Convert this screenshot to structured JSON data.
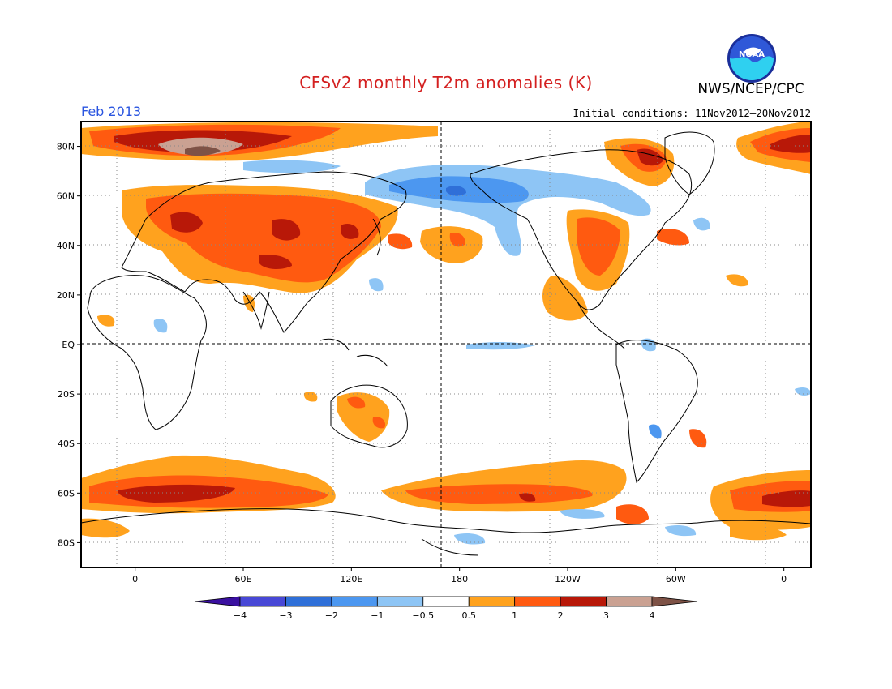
{
  "title": "CFSv2 monthly T2m anomalies (K)",
  "organization": "NWS/NCEP/CPC",
  "logo": {
    "text": "NOAA",
    "icon": "noaa-logo-icon"
  },
  "valid_month": "Feb 2013",
  "initial_conditions": "Initial conditions: 11Nov2012–20Nov2012",
  "colors": {
    "title": "#d42020",
    "valid_month": "#2a55e0"
  },
  "map": {
    "lon_labels": [
      "0",
      "60E",
      "120E",
      "180",
      "120W",
      "60W",
      "0"
    ],
    "lat_labels": [
      "80N",
      "60N",
      "40N",
      "20N",
      "EQ",
      "20S",
      "40S",
      "60S",
      "80S"
    ],
    "lon_values": [
      0,
      60,
      120,
      180,
      240,
      300,
      360
    ],
    "lat_values": [
      80,
      60,
      40,
      20,
      0,
      -20,
      -40,
      -60,
      -80
    ],
    "lon_range": [
      -30,
      375
    ],
    "lat_range": [
      -90,
      90
    ],
    "grid": "dotted"
  },
  "colorbar": {
    "labels": [
      "−4",
      "−3",
      "−2",
      "−1",
      "−0.5",
      "0.5",
      "1",
      "2",
      "3",
      "4"
    ],
    "colors": [
      "#3a10a0",
      "#4848d6",
      "#2f6fd8",
      "#4c97f0",
      "#8ec5f5",
      "#ffffff",
      "#ffa21e",
      "#ff5a10",
      "#b81808",
      "#caa192",
      "#7e5246"
    ]
  }
}
